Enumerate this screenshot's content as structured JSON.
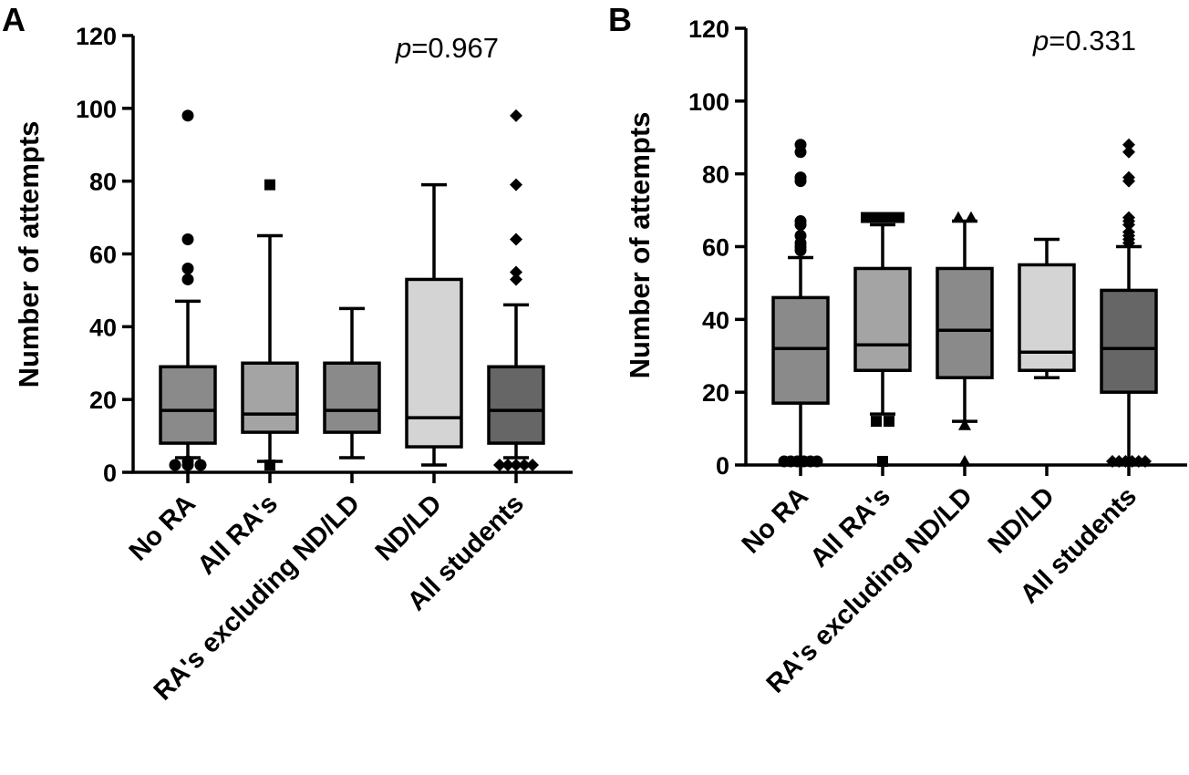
{
  "chart_data": [
    {
      "panel": "A",
      "type": "box",
      "ylabel": "Number of attempts",
      "ylim": [
        0,
        120
      ],
      "yticks": [
        0,
        20,
        40,
        60,
        80,
        100,
        120
      ],
      "annotation": {
        "var": "p",
        "value": "=0.967"
      },
      "categories": [
        "No RA",
        "All RA's",
        "RA's excluding ND/LD",
        "ND/LD",
        "All students"
      ],
      "boxes": [
        {
          "category": "No RA",
          "whisker_low": 4,
          "q1": 8,
          "median": 17,
          "q3": 29,
          "whisker_high": 47,
          "fill": "#8a8a8a",
          "marker": "circle",
          "outliers": [
            98,
            64,
            56,
            53,
            2,
            2,
            2,
            3
          ]
        },
        {
          "category": "All RA's",
          "whisker_low": 3,
          "q1": 11,
          "median": 16,
          "q3": 30,
          "whisker_high": 65,
          "fill": "#a4a4a4",
          "marker": "square",
          "outliers": [
            79,
            2
          ]
        },
        {
          "category": "RA's excluding ND/LD",
          "whisker_low": 4,
          "q1": 11,
          "median": 17,
          "q3": 30,
          "whisker_high": 45,
          "fill": "#8a8a8a",
          "marker": "triangle",
          "outliers": []
        },
        {
          "category": "ND/LD",
          "whisker_low": 2,
          "q1": 7,
          "median": 15,
          "q3": 53,
          "whisker_high": 79,
          "fill": "#d4d4d4",
          "marker": "triangle-down",
          "outliers": []
        },
        {
          "category": "All students",
          "whisker_low": 4,
          "q1": 8,
          "median": 17,
          "q3": 29,
          "whisker_high": 46,
          "fill": "#666666",
          "marker": "diamond",
          "outliers": [
            98,
            79,
            64,
            55,
            53,
            2,
            2,
            2,
            2,
            2
          ]
        }
      ]
    },
    {
      "panel": "B",
      "type": "box",
      "ylabel": "Number of attempts",
      "ylim": [
        0,
        120
      ],
      "yticks": [
        0,
        20,
        40,
        60,
        80,
        100,
        120
      ],
      "annotation": {
        "var": "p",
        "value": "=0.331"
      },
      "categories": [
        "No RA",
        "All RA's",
        "RA's excluding ND/LD",
        "ND/LD",
        "All students"
      ],
      "boxes": [
        {
          "category": "No RA",
          "whisker_low": 1,
          "q1": 17,
          "median": 32,
          "q3": 46,
          "whisker_high": 57,
          "fill": "#8a8a8a",
          "marker": "circle",
          "outliers": [
            88,
            86,
            79,
            78,
            67,
            66,
            63,
            61,
            60,
            59,
            1,
            1,
            1,
            1,
            1,
            1
          ]
        },
        {
          "category": "All RA's",
          "whisker_low": 14,
          "q1": 26,
          "median": 33,
          "q3": 54,
          "whisker_high": 66,
          "fill": "#a4a4a4",
          "marker": "square",
          "outliers": [
            68,
            68,
            68,
            68,
            12,
            12,
            1
          ]
        },
        {
          "category": "RA's excluding ND/LD",
          "whisker_low": 12,
          "q1": 24,
          "median": 37,
          "q3": 54,
          "whisker_high": 67,
          "fill": "#8a8a8a",
          "marker": "triangle",
          "outliers": [
            68,
            68,
            11,
            1
          ]
        },
        {
          "category": "ND/LD",
          "whisker_low": 24,
          "q1": 26,
          "median": 31,
          "q3": 55,
          "whisker_high": 62,
          "fill": "#d4d4d4",
          "marker": "triangle-down",
          "outliers": []
        },
        {
          "category": "All students",
          "whisker_low": 1,
          "q1": 20,
          "median": 32,
          "q3": 48,
          "whisker_high": 60,
          "fill": "#666666",
          "marker": "diamond",
          "outliers": [
            88,
            86,
            79,
            78,
            68,
            67,
            66,
            64,
            63,
            62,
            61,
            1,
            1,
            1,
            1,
            1,
            1
          ]
        }
      ]
    }
  ]
}
